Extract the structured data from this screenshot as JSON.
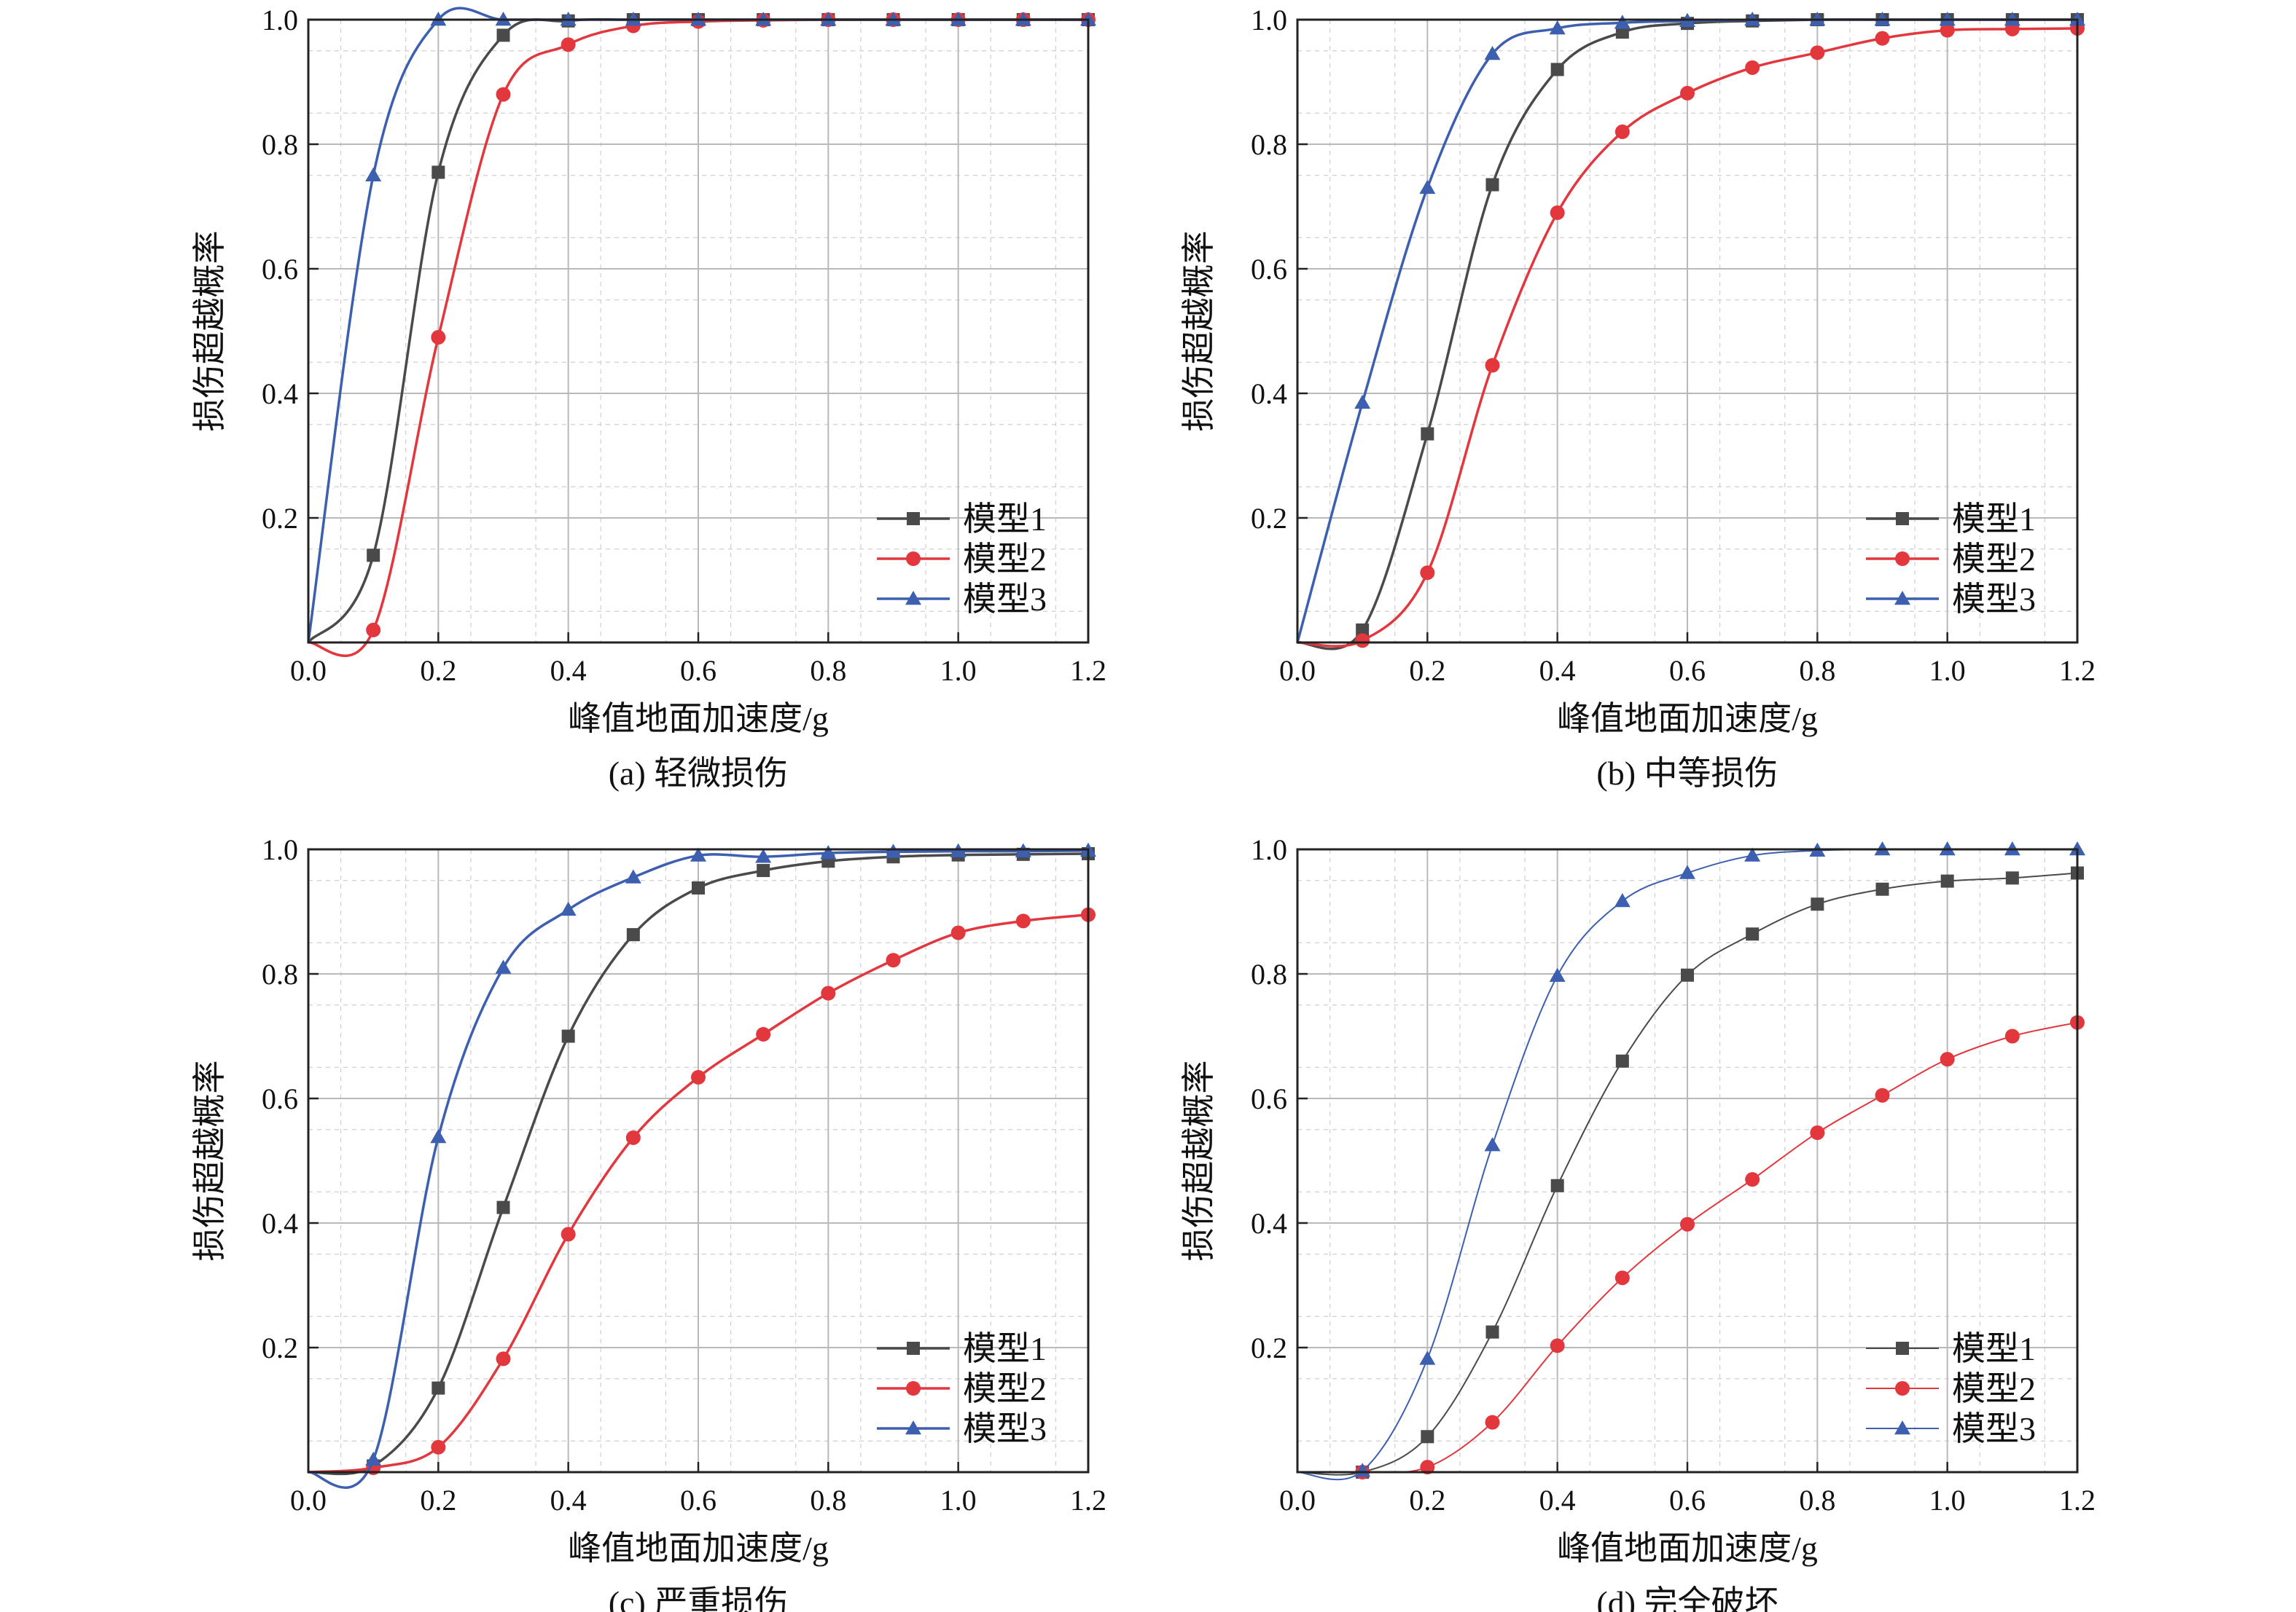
{
  "figure": {
    "series_names": [
      "模型1",
      "模型2",
      "模型3"
    ],
    "colors": {
      "model1": "#4a4a4a",
      "model2": "#e3373e",
      "model3": "#3d5fb0",
      "grid": "#b9b9b9",
      "frame": "#222222"
    }
  },
  "chart_data": [
    {
      "type": "line",
      "caption": "(a) 轻微损伤",
      "xlabel": "峰值地面加速度/g",
      "ylabel": "损伤超越概率",
      "xlim": [
        0.0,
        1.2
      ],
      "ylim": [
        0.0,
        1.0
      ],
      "x_ticks": [
        "0.0",
        "0.2",
        "0.4",
        "0.6",
        "0.8",
        "1.0",
        "1.2"
      ],
      "y_ticks": [
        "0.2",
        "0.4",
        "0.6",
        "0.8",
        "1.0"
      ],
      "grid": true,
      "legend": "bottom-right",
      "x": [
        0.0,
        0.1,
        0.2,
        0.3,
        0.4,
        0.5,
        0.6,
        0.7,
        0.8,
        0.9,
        1.0,
        1.1,
        1.2
      ],
      "series": [
        {
          "name": "模型1",
          "marker": "square",
          "values": [
            0.0,
            0.14,
            0.755,
            0.975,
            0.998,
            1.0,
            1.0,
            1.0,
            1.0,
            1.0,
            1.0,
            1.0,
            1.0
          ]
        },
        {
          "name": "模型2",
          "marker": "circle",
          "values": [
            0.0,
            0.02,
            0.49,
            0.88,
            0.96,
            0.99,
            0.997,
            0.999,
            1.0,
            1.0,
            1.0,
            1.0,
            1.0
          ]
        },
        {
          "name": "模型3",
          "marker": "triangle",
          "values": [
            0.0,
            0.75,
            1.0,
            1.0,
            1.0,
            1.0,
            1.0,
            1.0,
            1.0,
            1.0,
            1.0,
            1.0,
            1.0
          ]
        }
      ]
    },
    {
      "type": "line",
      "caption": "(b) 中等损伤",
      "xlabel": "峰值地面加速度/g",
      "ylabel": "损伤超越概率",
      "xlim": [
        0.0,
        1.2
      ],
      "ylim": [
        0.0,
        1.0
      ],
      "x_ticks": [
        "0.0",
        "0.2",
        "0.4",
        "0.6",
        "0.8",
        "1.0",
        "1.2"
      ],
      "y_ticks": [
        "0.2",
        "0.4",
        "0.6",
        "0.8",
        "1.0"
      ],
      "grid": true,
      "legend": "bottom-right",
      "x": [
        0.0,
        0.1,
        0.2,
        0.3,
        0.4,
        0.5,
        0.6,
        0.7,
        0.8,
        0.9,
        1.0,
        1.1,
        1.2
      ],
      "series": [
        {
          "name": "模型1",
          "marker": "square",
          "values": [
            0.0,
            0.02,
            0.335,
            0.735,
            0.92,
            0.98,
            0.994,
            0.998,
            1.0,
            1.0,
            1.0,
            1.0,
            1.0
          ]
        },
        {
          "name": "模型2",
          "marker": "circle",
          "values": [
            0.0,
            0.003,
            0.112,
            0.445,
            0.69,
            0.82,
            0.882,
            0.923,
            0.947,
            0.97,
            0.983,
            0.985,
            0.986
          ]
        },
        {
          "name": "模型3",
          "marker": "triangle",
          "values": [
            0.0,
            0.385,
            0.73,
            0.945,
            0.986,
            0.995,
            0.998,
            1.0,
            1.0,
            1.0,
            1.0,
            1.0,
            1.0
          ]
        }
      ]
    },
    {
      "type": "line",
      "caption": "(c) 严重损伤",
      "xlabel": "峰值地面加速度/g",
      "ylabel": "损伤超越概率",
      "xlim": [
        0.0,
        1.2
      ],
      "ylim": [
        0.0,
        1.0
      ],
      "x_ticks": [
        "0.0",
        "0.2",
        "0.4",
        "0.6",
        "0.8",
        "1.0",
        "1.2"
      ],
      "y_ticks": [
        "0.2",
        "0.4",
        "0.6",
        "0.8",
        "1.0"
      ],
      "grid": true,
      "legend": "bottom-right",
      "x": [
        0.0,
        0.1,
        0.2,
        0.3,
        0.4,
        0.5,
        0.6,
        0.7,
        0.8,
        0.9,
        1.0,
        1.1,
        1.2
      ],
      "series": [
        {
          "name": "模型1",
          "marker": "square",
          "values": [
            0.0,
            0.01,
            0.135,
            0.425,
            0.7,
            0.863,
            0.938,
            0.966,
            0.981,
            0.988,
            0.991,
            0.992,
            0.993
          ]
        },
        {
          "name": "模型2",
          "marker": "circle",
          "values": [
            0.0,
            0.007,
            0.04,
            0.182,
            0.382,
            0.537,
            0.634,
            0.703,
            0.769,
            0.822,
            0.866,
            0.885,
            0.895
          ]
        },
        {
          "name": "模型3",
          "marker": "triangle",
          "values": [
            0.0,
            0.02,
            0.538,
            0.81,
            0.903,
            0.955,
            0.99,
            0.988,
            0.994,
            0.996,
            0.997,
            0.997,
            0.998
          ]
        }
      ]
    },
    {
      "type": "line",
      "caption": "(d) 完全破坏",
      "xlabel": "峰值地面加速度/g",
      "ylabel": "损伤超越概率",
      "xlim": [
        0.0,
        1.2
      ],
      "ylim": [
        0.0,
        1.0
      ],
      "x_ticks": [
        "0.0",
        "0.2",
        "0.4",
        "0.6",
        "0.8",
        "1.0",
        "1.2"
      ],
      "y_ticks": [
        "0.2",
        "0.4",
        "0.6",
        "0.8",
        "1.0"
      ],
      "grid": true,
      "legend": "bottom-right",
      "x": [
        0.0,
        0.1,
        0.2,
        0.3,
        0.4,
        0.5,
        0.6,
        0.7,
        0.8,
        0.9,
        1.0,
        1.1,
        1.2
      ],
      "series": [
        {
          "name": "模型1",
          "marker": "square",
          "values": [
            0.0,
            0.0,
            0.057,
            0.225,
            0.46,
            0.66,
            0.798,
            0.864,
            0.912,
            0.936,
            0.949,
            0.954,
            0.962
          ]
        },
        {
          "name": "模型2",
          "marker": "circle",
          "values": [
            0.0,
            0.0,
            0.008,
            0.08,
            0.203,
            0.312,
            0.398,
            0.47,
            0.545,
            0.605,
            0.663,
            0.7,
            0.722
          ]
        },
        {
          "name": "模型3",
          "marker": "triangle",
          "values": [
            0.0,
            0.002,
            0.182,
            0.525,
            0.797,
            0.917,
            0.962,
            0.99,
            0.998,
            1.0,
            1.0,
            1.0,
            1.0
          ]
        }
      ]
    }
  ]
}
